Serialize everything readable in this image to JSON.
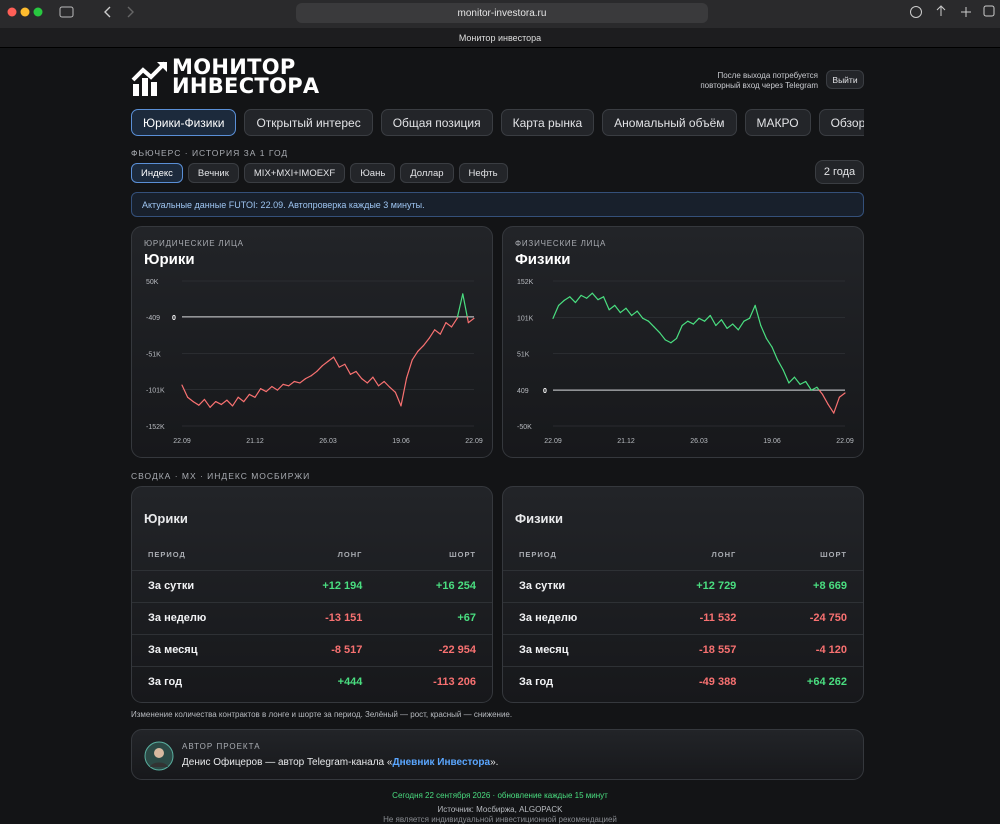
{
  "browser": {
    "url": "monitor-investora.ru",
    "tab_title": "Монитор инвестора"
  },
  "header": {
    "logo_line1": "МОНИТОР",
    "logo_line2": "ИНВЕСТОРА",
    "logout_note": [
      "После выхода потребуется",
      "повторный вход через Telegram"
    ],
    "logout_button": "Выйти"
  },
  "nav": [
    "Юрики-Физики",
    "Открытый интерес",
    "Общая позиция",
    "Карта рынка",
    "Аномальный объём",
    "МАКРО",
    "Обзор новостей"
  ],
  "nav_active": 0,
  "section_history": "ФЬЮЧЕРС · ИСТОРИЯ ЗА 1 ГОД",
  "filters": [
    "Индекс",
    "Вечник",
    "MIX+MXI+IMOEXF",
    "Юань",
    "Доллар",
    "Нефть"
  ],
  "filter_active": 0,
  "period_button": "2 года",
  "info": "Актуальные данные FUTOI: 22.09. Автопроверка каждые 3 минуты.",
  "chart_data": [
    {
      "type": "line",
      "subtitle": "ЮРИДИЧЕСКИЕ ЛИЦА",
      "title": "Юрики",
      "values": [
        -95000,
        -112000,
        -118000,
        -123000,
        -115000,
        -126000,
        -118000,
        -122000,
        -116000,
        -124000,
        -112000,
        -118000,
        -108000,
        -112000,
        -100000,
        -104000,
        -97000,
        -102000,
        -94000,
        -96000,
        -90000,
        -92000,
        -86000,
        -82000,
        -76000,
        -68000,
        -62000,
        -56000,
        -70000,
        -66000,
        -80000,
        -76000,
        -86000,
        -92000,
        -84000,
        -96000,
        -90000,
        -98000,
        -105000,
        -124000,
        -85000,
        -60000,
        -48000,
        -40000,
        -30000,
        -18000,
        -24000,
        -8000,
        -14000,
        -2000,
        32000,
        -8000,
        -2000
      ],
      "xlim": [
        0,
        52
      ],
      "xticks": [
        {
          "value": 0,
          "label": "22.09"
        },
        {
          "value": 13,
          "label": "21.12"
        },
        {
          "value": 26,
          "label": "26.03"
        },
        {
          "value": 39,
          "label": "19.06"
        },
        {
          "value": 52,
          "label": "22.09"
        }
      ],
      "ylim": [
        -152000,
        50000
      ],
      "yticks": [
        {
          "value": 50000,
          "label": "50K"
        },
        -409,
        {
          "value": -51000,
          "label": "-51K"
        },
        {
          "value": -101000,
          "label": "-101K"
        },
        {
          "value": -152000,
          "label": "-152K"
        }
      ],
      "grid": true,
      "up_color": "#4ade80",
      "down_color": "#f87171",
      "annotations": [
        {
          "text": "0",
          "y": 0
        }
      ]
    },
    {
      "type": "line",
      "subtitle": "ФИЗИЧЕСКИЕ ЛИЦА",
      "title": "Физики",
      "values": [
        100000,
        118000,
        125000,
        130000,
        122000,
        132000,
        128000,
        135000,
        126000,
        130000,
        112000,
        118000,
        108000,
        114000,
        104000,
        110000,
        100000,
        96000,
        88000,
        80000,
        70000,
        66000,
        72000,
        90000,
        96000,
        92000,
        100000,
        96000,
        104000,
        90000,
        98000,
        86000,
        92000,
        84000,
        96000,
        100000,
        118000,
        90000,
        72000,
        60000,
        42000,
        28000,
        10000,
        18000,
        8000,
        12000,
        0,
        4000,
        -6000,
        -20000,
        -32000,
        -10000,
        -4000
      ],
      "xlim": [
        0,
        52
      ],
      "xticks": [
        {
          "value": 0,
          "label": "22.09"
        },
        {
          "value": 13,
          "label": "21.12"
        },
        {
          "value": 26,
          "label": "26.03"
        },
        {
          "value": 39,
          "label": "19.06"
        },
        {
          "value": 52,
          "label": "22.09"
        }
      ],
      "ylim": [
        -50000,
        152000
      ],
      "yticks": [
        {
          "value": 152000,
          "label": "152K"
        },
        {
          "value": 101000,
          "label": "101K"
        },
        {
          "value": 51000,
          "label": "51K"
        },
        409,
        {
          "value": -50000,
          "label": "-50K"
        }
      ],
      "grid": true,
      "up_color": "#4ade80",
      "down_color": "#f87171",
      "annotations": [
        {
          "text": "0",
          "y": 0
        }
      ]
    }
  ],
  "section_summary": "СВОДКА · MX · ИНДЕКС МОСБИРЖИ",
  "tables": [
    {
      "title": "Юрики",
      "columns": [
        "ПЕРИОД",
        "ЛОНГ",
        "ШОРТ"
      ],
      "rows": [
        [
          "За сутки",
          "+12 194",
          "+16 254"
        ],
        [
          "За неделю",
          "-13 151",
          "+67"
        ],
        [
          "За месяц",
          "-8 517",
          "-22 954"
        ],
        [
          "За год",
          "+444",
          "-113 206"
        ]
      ]
    },
    {
      "title": "Физики",
      "columns": [
        "ПЕРИОД",
        "ЛОНГ",
        "ШОРТ"
      ],
      "rows": [
        [
          "За сутки",
          "+12 729",
          "+8 669"
        ],
        [
          "За неделю",
          "-11 532",
          "-24 750"
        ],
        [
          "За месяц",
          "-18 557",
          "-4 120"
        ],
        [
          "За год",
          "-49 388",
          "+64 262"
        ]
      ]
    }
  ],
  "note": "Изменение количества контрактов в лонге и шорте за период. Зелёный — рост, красный — снижение.",
  "author": {
    "label": "АВТОР ПРОЕКТА",
    "text_before": "Денис Офицеров — автор Telegram-канала «",
    "link": "Дневник Инвестора",
    "text_after": "»."
  },
  "footer": [
    "Сегодня 22 сентября 2026 · обновление каждые 15 минут",
    "Источник: Мосбиржа, ALGOPACK",
    "Не является индивидуальной инвестиционной рекомендацией"
  ]
}
